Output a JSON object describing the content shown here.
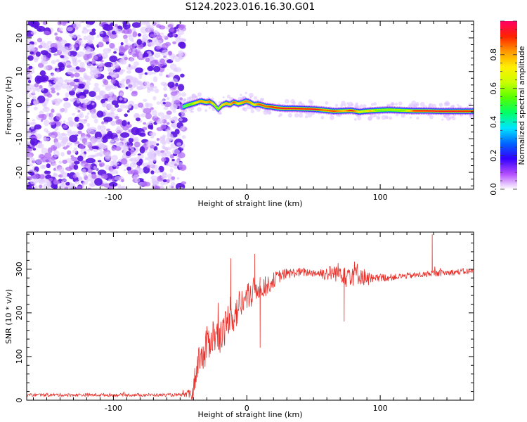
{
  "figure_title": "S124.2023.016.16.30.G01",
  "chart_data": [
    {
      "type": "heatmap",
      "title": "",
      "xlabel": "Height of straight line (km)",
      "ylabel": "Frequency (Hz)",
      "xlim": [
        -165,
        170
      ],
      "ylim": [
        -25,
        25
      ],
      "xticks": [
        -100,
        0,
        100
      ],
      "yticks": [
        -20,
        -10,
        0,
        10,
        20
      ],
      "grid": false,
      "colorbar": {
        "label": "Normalized spectral amplitude",
        "range": [
          0,
          1
        ],
        "ticks": [
          0.0,
          0.2,
          0.4,
          0.6,
          0.8
        ],
        "colors": [
          "#ffffff",
          "#b34dff",
          "#3300ff",
          "#0066ff",
          "#00e5ff",
          "#00ff66",
          "#55ff00",
          "#ccff00",
          "#ffee00",
          "#ff9900",
          "#ff2200",
          "#ff0066"
        ]
      },
      "noise_region_x": [
        -165,
        -50
      ],
      "signal_trace": {
        "x": [
          -48,
          -45,
          -42,
          -38,
          -35,
          -31,
          -28,
          -25,
          -22,
          -19,
          -16,
          -13,
          -10,
          -7,
          -4,
          -1,
          2,
          5,
          8,
          11,
          14,
          18,
          22,
          28,
          35,
          42,
          50,
          58,
          65,
          72,
          78,
          84,
          88,
          92,
          96,
          100,
          106,
          112,
          118,
          125,
          135,
          145,
          155,
          170
        ],
        "y": [
          -0.5,
          0.0,
          0.3,
          0.8,
          1.2,
          0.8,
          1.0,
          0.2,
          -1.2,
          0.0,
          0.5,
          0.2,
          0.9,
          0.4,
          0.7,
          1.2,
          0.8,
          0.1,
          0.3,
          0.0,
          -0.4,
          -0.5,
          -0.8,
          -1.0,
          -1.0,
          -1.1,
          -1.2,
          -1.5,
          -1.8,
          -1.7,
          -1.6,
          -2.0,
          -1.8,
          -1.7,
          -1.6,
          -1.5,
          -1.4,
          -1.5,
          -1.6,
          -1.7,
          -1.7,
          -1.8,
          -1.8,
          -1.8
        ],
        "amplitude": [
          0.35,
          0.5,
          0.55,
          0.7,
          0.8,
          0.75,
          0.85,
          0.6,
          0.5,
          0.7,
          0.8,
          0.75,
          0.9,
          0.7,
          0.8,
          0.85,
          0.8,
          0.7,
          0.85,
          0.9,
          0.85,
          0.9,
          0.95,
          0.95,
          0.95,
          0.9,
          0.95,
          0.85,
          0.9,
          0.75,
          0.95,
          0.7,
          0.6,
          0.8,
          0.55,
          0.5,
          0.55,
          0.55,
          0.55,
          0.9,
          0.95,
          0.95,
          0.95,
          0.9
        ]
      }
    },
    {
      "type": "line",
      "title": "",
      "xlabel": "Height of straight line (km)",
      "ylabel": "SNR (10 * v/v)",
      "xlim": [
        -165,
        170
      ],
      "ylim": [
        0,
        385
      ],
      "xticks": [
        -100,
        0,
        100
      ],
      "yticks": [
        0,
        100,
        200,
        300
      ],
      "grid": false,
      "line_color": "#e8302a",
      "envelope": {
        "x": [
          -165,
          -140,
          -100,
          -60,
          -45,
          -40,
          -38,
          -35,
          -32,
          -30,
          -25,
          -20,
          -15,
          -12,
          -10,
          -5,
          0,
          5,
          10,
          15,
          20,
          25,
          30,
          40,
          50,
          60,
          65,
          70,
          73,
          75,
          78,
          80,
          85,
          88,
          92,
          95,
          100,
          110,
          120,
          135,
          139,
          140,
          150,
          160,
          170
        ],
        "y": [
          12,
          12,
          12,
          12,
          12,
          20,
          70,
          110,
          90,
          130,
          150,
          140,
          175,
          210,
          190,
          220,
          230,
          250,
          262,
          260,
          275,
          285,
          290,
          293,
          292,
          290,
          292,
          293,
          296,
          290,
          290,
          292,
          288,
          282,
          278,
          275,
          280,
          282,
          285,
          288,
          292,
          290,
          292,
          294,
          296
        ]
      },
      "noise_amplitude": {
        "x": [
          -165,
          -50,
          -45,
          -38,
          -30,
          -20,
          -10,
          0,
          10,
          20,
          30,
          50,
          70,
          75,
          85,
          95,
          110,
          170
        ],
        "y": [
          6,
          6,
          10,
          60,
          70,
          70,
          70,
          60,
          45,
          30,
          20,
          15,
          40,
          60,
          40,
          20,
          12,
          12
        ]
      },
      "spikes": [
        {
          "x": 139,
          "y": 380
        },
        {
          "x": 73,
          "y": 180
        },
        {
          "x": 10,
          "y": 120
        },
        {
          "x": 6,
          "y": 335
        },
        {
          "x": -12,
          "y": 325
        }
      ]
    }
  ]
}
